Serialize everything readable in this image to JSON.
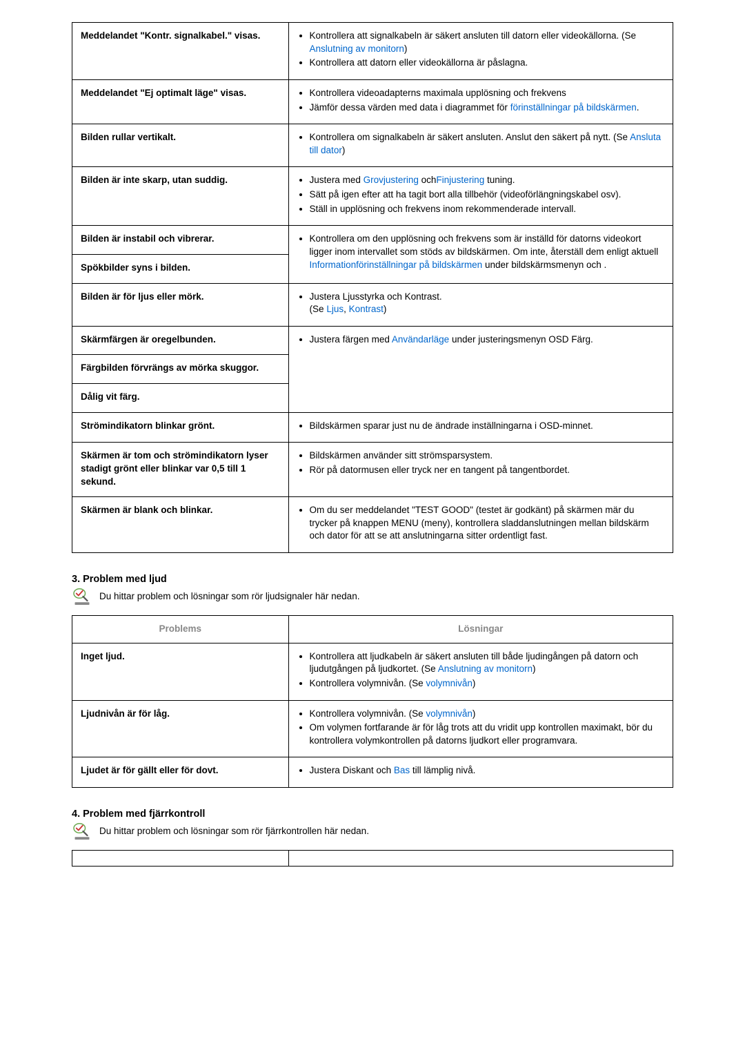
{
  "tables": {
    "display": {
      "rows": [
        {
          "problem": "Meddelandet \"Kontr. signalkabel.\" visas.",
          "solution": [
            {
              "pre": "Kontrollera att signalkabeln är säkert ansluten till datorn eller videokällorna. (Se ",
              "link": "Anslutning av monitorn",
              "post": ")"
            },
            {
              "pre": "Kontrollera att datorn eller videokällorna är påslagna."
            }
          ]
        },
        {
          "problem": "Meddelandet \"Ej optimalt läge\" visas.",
          "solution": [
            {
              "pre": "Kontrollera videoadapterns maximala upplösning och frekvens"
            },
            {
              "pre": "Jämför dessa värden med data i diagrammet för ",
              "link": "förinställningar på bildskärmen",
              "post": "."
            }
          ]
        },
        {
          "problem": "Bilden rullar vertikalt.",
          "solution": [
            {
              "pre": "Kontrollera om signalkabeln är säkert ansluten. Anslut den säkert på nytt. (Se ",
              "link": "Ansluta till dator",
              "post": ")"
            }
          ]
        },
        {
          "problem": "Bilden är inte skarp, utan suddig.",
          "solution": [
            {
              "pre": "Justera med ",
              "link": "Grovjustering",
              "mid": " och",
              "link2": "Finjustering",
              "post": " tuning."
            },
            {
              "pre": "Sätt på igen efter att ha tagit bort alla tillbehör (videoförlängningskabel osv)."
            },
            {
              "pre": "Ställ in upplösning och frekvens inom rekommenderade intervall."
            }
          ]
        },
        {
          "problem": "Bilden är instabil och vibrerar.",
          "solution_shared_top": [
            {
              "pre": "Kontrollera om den upplösning och frekvens som är inställd för datorns videokort ligger inom intervallet som stöds av bildskärmen. Om inte, återställ dem enligt aktuell ",
              "link": "Information",
              "post": " under bildskärmsmenyn och ",
              "link2": "förinställningar på bildskärmen",
              "post2": "."
            }
          ]
        },
        {
          "problem": "Spökbilder syns i bilden."
        },
        {
          "problem": "Bilden är för ljus eller mörk.",
          "solution": [
            {
              "pre": "Justera Ljusstyrka och Kontrast."
            },
            {
              "pre": "(Se ",
              "link": "Ljus",
              "mid": ", ",
              "link2": "Kontrast",
              "post": ")",
              "unbulleted": true
            }
          ]
        },
        {
          "problem": "Skärmfärgen är oregelbunden.",
          "solution_shared_top": [
            {
              "pre": "Justera färgen med ",
              "link": "Användarläge",
              "post": " under justeringsmenyn OSD Färg."
            }
          ]
        },
        {
          "problem": "Färgbilden förvrängs av mörka skuggor."
        },
        {
          "problem": "Dålig vit färg."
        },
        {
          "problem": "Strömindikatorn blinkar grönt.",
          "solution": [
            {
              "pre": "Bildskärmen sparar just nu de ändrade inställningarna i OSD-minnet."
            }
          ]
        },
        {
          "problem": "Skärmen är tom och strömindikatorn lyser stadigt grönt eller blinkar var 0,5 till 1 sekund.",
          "solution": [
            {
              "pre": "Bildskärmen använder sitt strömsparsystem."
            },
            {
              "pre": "Rör på datormusen eller tryck ner en tangent på tangentbordet."
            }
          ]
        },
        {
          "problem": "Skärmen är blank och blinkar.",
          "solution": [
            {
              "pre": "Om du ser meddelandet \"TEST GOOD\" (testet är godkänt) på skärmen mär du trycker på knappen MENU (meny), kontrollera sladdanslutningen mellan bildskärm och dator för att se att anslutningarna sitter ordentligt fast."
            }
          ]
        }
      ]
    },
    "audio": {
      "header_problem": "Problems",
      "header_solution": "Lösningar",
      "rows": [
        {
          "problem": "Inget ljud.",
          "solution": [
            {
              "pre": "Kontrollera att ljudkabeln är säkert ansluten till både ljudingången på datorn och ljudutgången på ljudkortet. (Se ",
              "link": "Anslutning av monitorn",
              "post": ")"
            },
            {
              "pre": "Kontrollera volymnivån. (Se ",
              "link": "volymnivån",
              "post": ")"
            }
          ]
        },
        {
          "problem": "Ljudnivån är för låg.",
          "solution": [
            {
              "pre": "Kontrollera volymnivån. (Se ",
              "link": "volymnivån",
              "post": ")"
            },
            {
              "pre": "Om volymen fortfarande är för låg trots att du vridit upp kontrollen maximakt, bör du kontrollera volymkontrollen på datorns ljudkort eller programvara."
            }
          ]
        },
        {
          "problem": "Ljudet är för gällt eller för dovt.",
          "solution": [
            {
              "pre": "Justera Diskant och ",
              "link": "Bas",
              "post": " till lämplig nivå."
            }
          ]
        }
      ]
    }
  },
  "sections": {
    "s3": {
      "title": "3. Problem med ljud",
      "desc": "Du hittar problem och lösningar som rör ljudsignaler här nedan."
    },
    "s4": {
      "title": "4. Problem med fjärrkontroll",
      "desc": "Du hittar problem och lösningar som rör fjärrkontrollen här nedan."
    }
  },
  "colors": {
    "link": "#0066cc",
    "header_gray": "#888888",
    "icon_green": "#3a8f3a",
    "icon_body": "#7a7a7a"
  }
}
